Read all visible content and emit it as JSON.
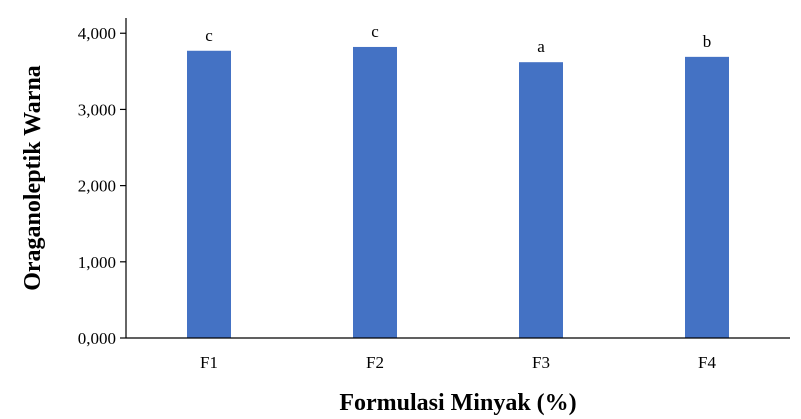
{
  "chart_data": {
    "type": "bar",
    "title": "",
    "xlabel": "Formulasi Minyak (%)",
    "ylabel": "Oraganoleptik Warna",
    "categories": [
      "F1",
      "F2",
      "F3",
      "F4"
    ],
    "values": [
      3.77,
      3.82,
      3.62,
      3.69
    ],
    "significance_labels": [
      "c",
      "c",
      "a",
      "b"
    ],
    "ylim": [
      0,
      4.2
    ],
    "yticks": [
      0,
      1,
      2,
      3,
      4
    ],
    "ytick_labels": [
      "0,000",
      "1,000",
      "2,000",
      "3,000",
      "4,000"
    ],
    "bar_color": "#4472C4",
    "grid": false,
    "legend": "none"
  }
}
